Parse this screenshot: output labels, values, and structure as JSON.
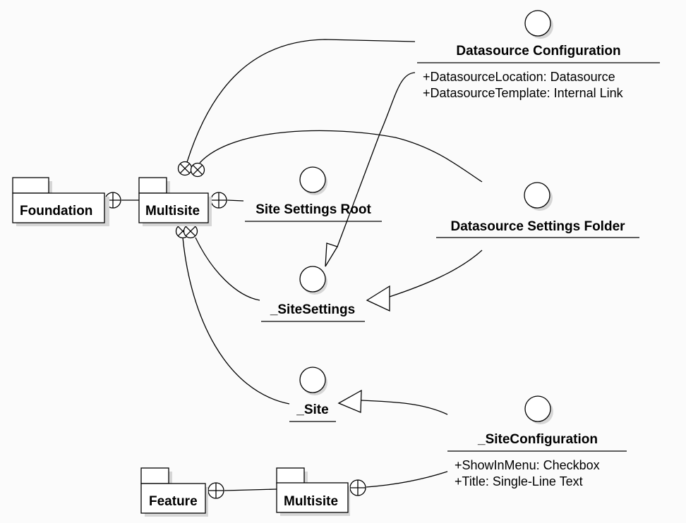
{
  "packages": {
    "foundation": "Foundation",
    "multisite_top": "Multisite",
    "feature": "Feature",
    "multisite_bottom": "Multisite"
  },
  "templates": {
    "datasource_configuration": {
      "name": "Datasource Configuration",
      "fields": [
        "+DatasourceLocation: Datasource",
        "+DatasourceTemplate: Internal Link"
      ]
    },
    "site_settings_root": {
      "name": "Site Settings Root"
    },
    "datasource_settings_folder": {
      "name": "Datasource Settings Folder"
    },
    "site_settings": {
      "name": "_SiteSettings"
    },
    "site": {
      "name": "_Site"
    },
    "site_configuration": {
      "name": "_SiteConfiguration",
      "fields": [
        "+ShowInMenu: Checkbox",
        "+Title: Single-Line Text"
      ]
    }
  }
}
